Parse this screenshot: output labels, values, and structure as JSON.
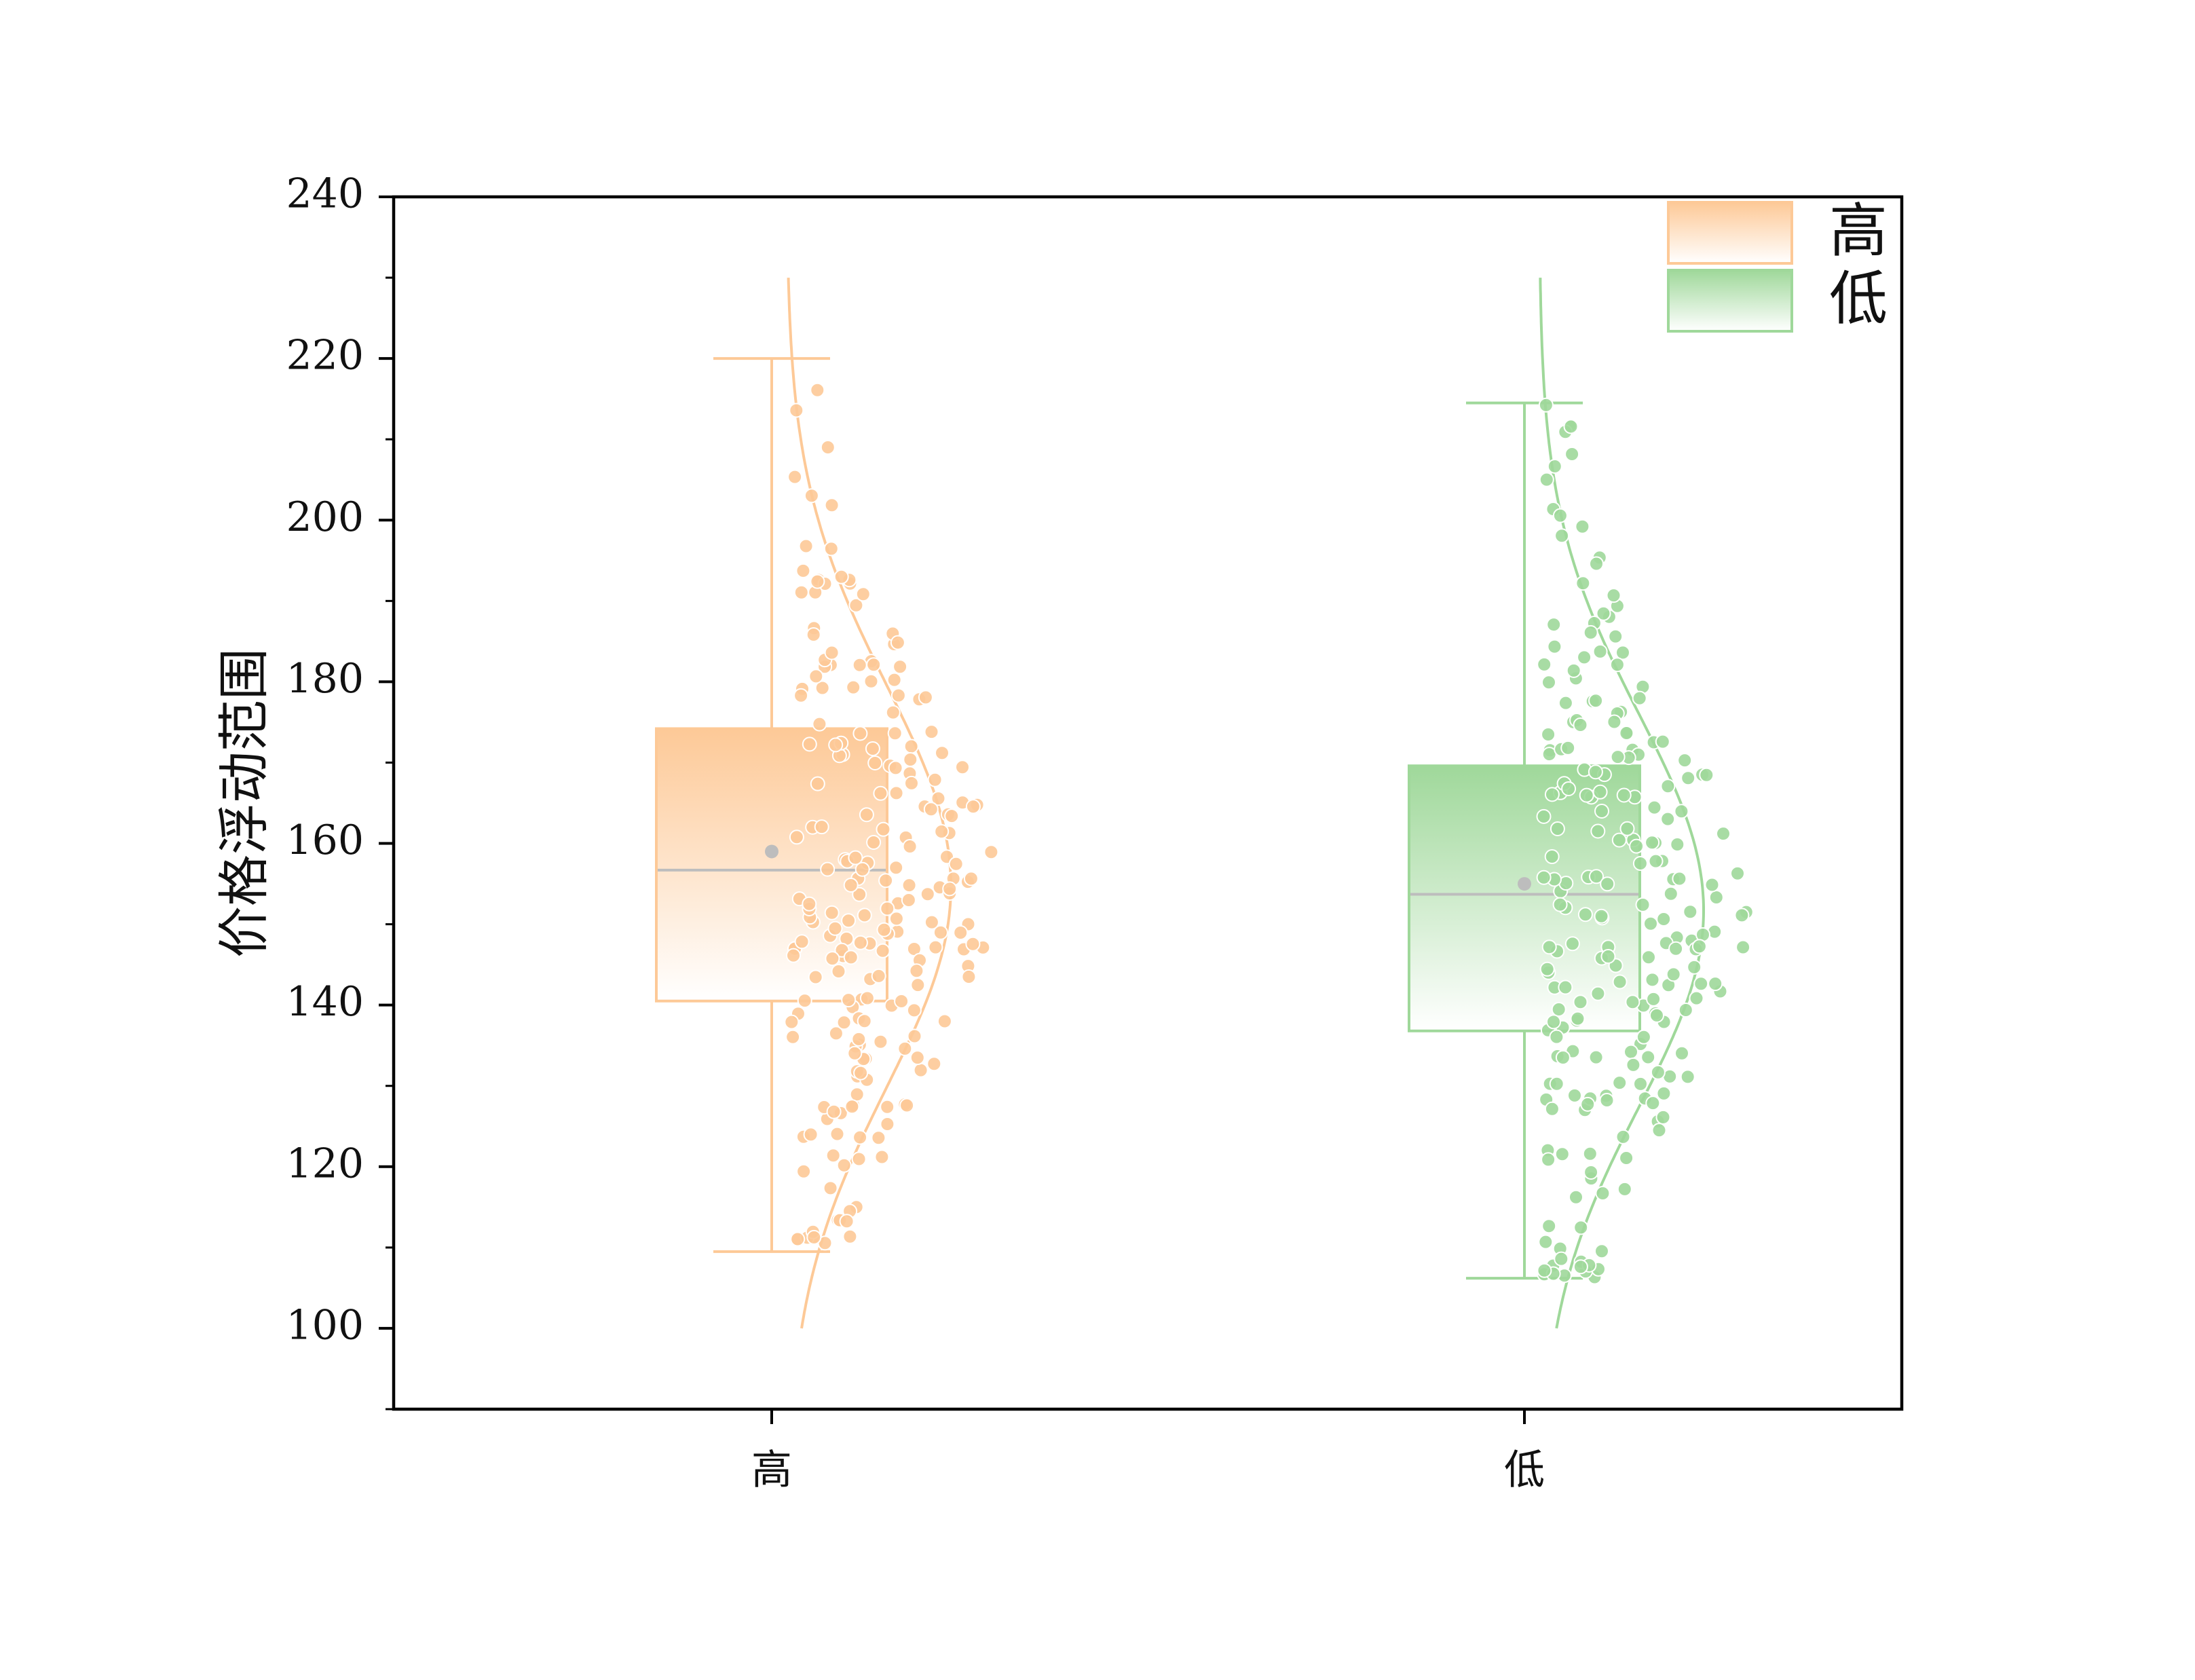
{
  "chart_data": {
    "type": "box",
    "title": "",
    "xlabel": "",
    "ylabel": "价格浮动范围",
    "ylim": [
      90,
      240
    ],
    "yticks": [
      100,
      120,
      140,
      160,
      180,
      200,
      220,
      240
    ],
    "categories": [
      "高",
      "低"
    ],
    "grid": false,
    "legend_position": "top-right",
    "series": [
      {
        "name": "高",
        "color": "#FDC997",
        "box": {
          "min": 109.5,
          "q1": 140.5,
          "median": 156.7,
          "q3": 174.2,
          "max": 220.0,
          "mean": 159.0
        },
        "density_range": [
          100,
          230
        ],
        "points_count": 220
      },
      {
        "name": "低",
        "color": "#9FD89A",
        "box": {
          "min": 106.2,
          "q1": 136.8,
          "median": 153.7,
          "q3": 169.6,
          "max": 214.5,
          "mean": 155.0
        },
        "density_range": [
          100,
          230
        ],
        "points_count": 220
      }
    ]
  }
}
